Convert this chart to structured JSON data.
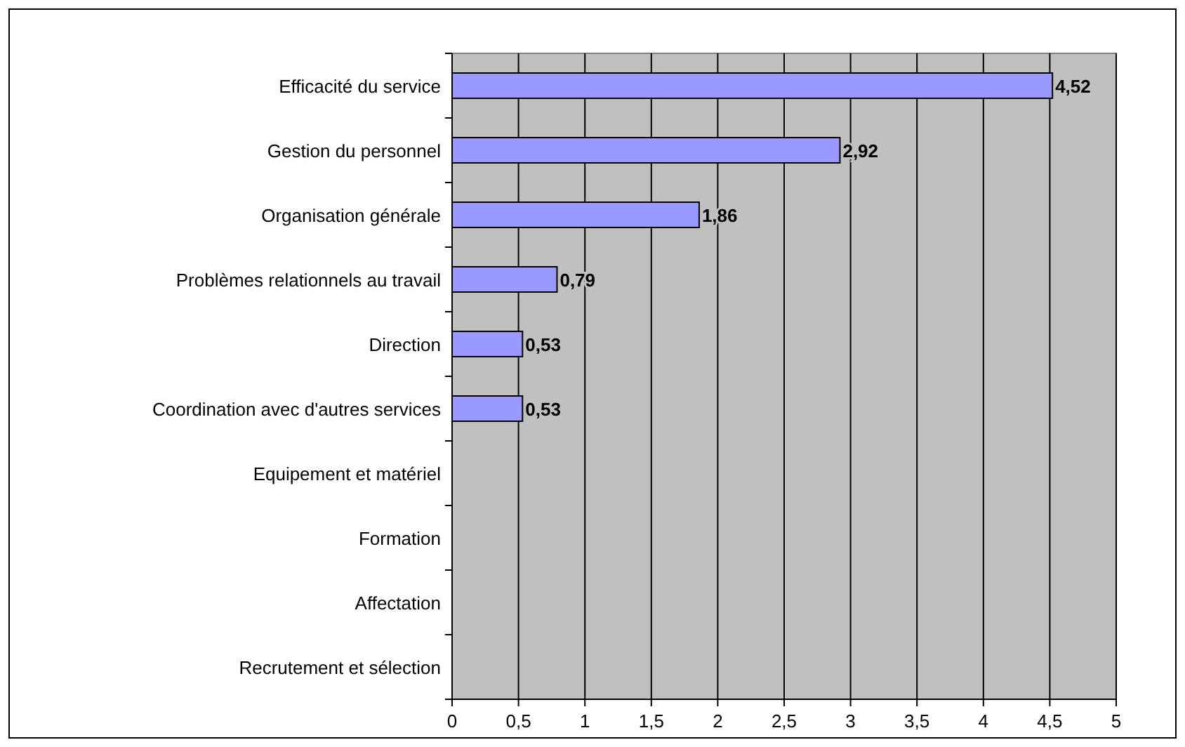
{
  "chart_data": {
    "type": "bar",
    "orientation": "horizontal",
    "categories": [
      "Efficacité du service",
      "Gestion du personnel",
      "Organisation générale",
      "Problèmes relationnels au travail",
      "Direction",
      "Coordination avec d'autres services",
      "Equipement et matériel",
      "Formation",
      "Affectation",
      "Recrutement et sélection"
    ],
    "values": [
      4.52,
      2.92,
      1.86,
      0.79,
      0.53,
      0.53,
      0,
      0,
      0,
      0
    ],
    "value_labels": [
      "4,52",
      "2,92",
      "1,86",
      "0,79",
      "0,53",
      "0,53",
      null,
      null,
      null,
      null
    ],
    "color": "#9999ff",
    "xlim": [
      0,
      5
    ],
    "xticks": [
      0,
      {
        "value": 0.5,
        "label": "0,5"
      },
      1,
      {
        "value": 1.5,
        "label": "1,5"
      },
      2,
      {
        "value": 2.5,
        "label": "2,5"
      },
      3,
      {
        "value": 3.5,
        "label": "3,5"
      },
      4,
      {
        "value": 4.5,
        "label": "4,5"
      },
      5
    ],
    "grid": "x"
  }
}
